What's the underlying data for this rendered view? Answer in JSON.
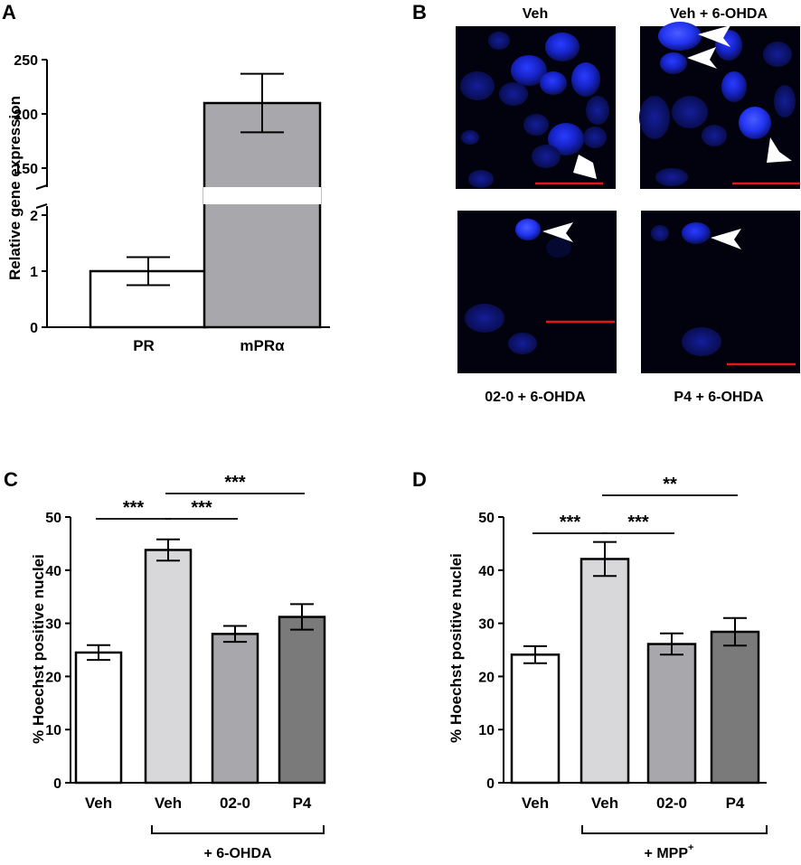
{
  "panels": {
    "A": "A",
    "B": "B",
    "C": "C",
    "D": "D"
  },
  "chart_data": [
    {
      "panel": "A",
      "type": "bar",
      "ylabel": "Relative gene expression",
      "categories": [
        "PR",
        "mPRα"
      ],
      "values": [
        1.0,
        210
      ],
      "errors": [
        0.25,
        27
      ],
      "bar_colors": [
        "#ffffff",
        "#a8a8ac"
      ],
      "axis_break": true,
      "lower_ylim": [
        0,
        2.2
      ],
      "lower_yticks": [
        "0",
        "1",
        "2"
      ],
      "upper_ylim": [
        135,
        250
      ],
      "upper_yticks": [
        "150",
        "200",
        "250"
      ]
    },
    {
      "panel": "C",
      "type": "bar",
      "ylabel": "% Hoechst positive nuclei",
      "categories": [
        "Veh",
        "Veh",
        "02-0",
        "P4"
      ],
      "values": [
        24.5,
        43.8,
        28.0,
        31.2
      ],
      "errors": [
        1.4,
        2.0,
        1.5,
        2.4
      ],
      "bar_colors": [
        "#ffffff",
        "#d8d8da",
        "#a8a8ac",
        "#7a7a7a"
      ],
      "ylim": [
        0,
        50
      ],
      "yticks": [
        "0",
        "10",
        "20",
        "30",
        "40",
        "50"
      ],
      "group_label": "+ 6-OHDA",
      "significance": [
        {
          "from": 0,
          "to": 1,
          "label": "***"
        },
        {
          "from": 1,
          "to": 2,
          "label": "***"
        },
        {
          "from": 1,
          "to": 3,
          "label": "***"
        }
      ]
    },
    {
      "panel": "D",
      "type": "bar",
      "ylabel": "% Hoechst positive nuclei",
      "categories": [
        "Veh",
        "Veh",
        "02-0",
        "P4"
      ],
      "values": [
        24.1,
        42.1,
        26.1,
        28.4
      ],
      "errors": [
        1.6,
        3.2,
        2.0,
        2.6
      ],
      "bar_colors": [
        "#ffffff",
        "#d8d8da",
        "#a8a8ac",
        "#7a7a7a"
      ],
      "ylim": [
        0,
        50
      ],
      "yticks": [
        "0",
        "10",
        "20",
        "30",
        "40",
        "50"
      ],
      "group_label": "+ MPP",
      "group_label_sup": "+",
      "significance": [
        {
          "from": 0,
          "to": 1,
          "label": "***"
        },
        {
          "from": 1,
          "to": 2,
          "label": "***"
        },
        {
          "from": 1,
          "to": 3,
          "label": "**"
        }
      ]
    }
  ],
  "micrographs": {
    "col_labels": [
      "Veh",
      "Veh + 6-OHDA"
    ],
    "row_labels": [
      "02-0 + 6-OHDA",
      "P4 + 6-OHDA"
    ]
  }
}
